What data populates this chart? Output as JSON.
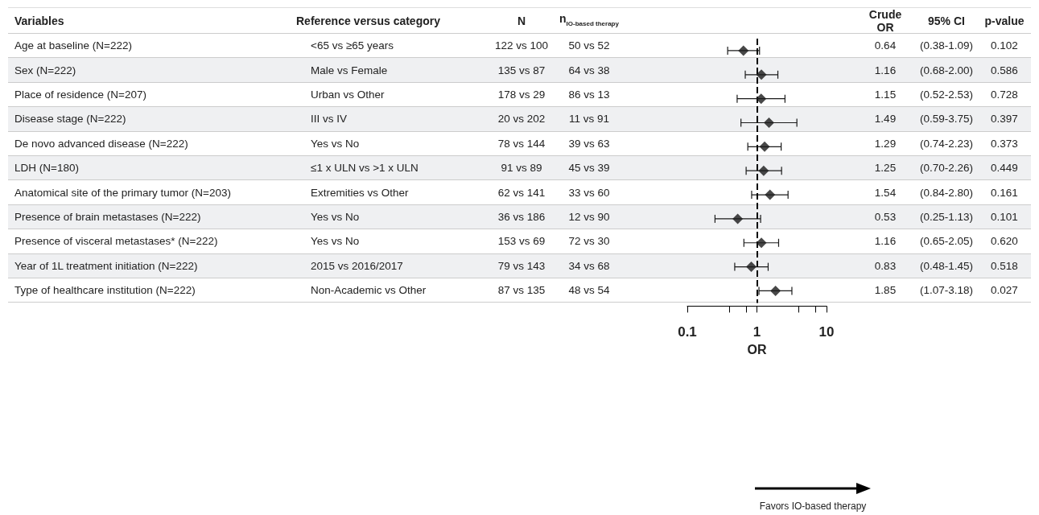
{
  "chart_data": [
    {
      "type": "other",
      "categories": [
        "Variables",
        "Reference versus category",
        "N",
        "n$_{IO-based therapy}$"
      ],
      "cell_labels": [
        [
          "Age at baseline (N=222)",
          "<65 vs ≥65 years",
          "122 vs 100",
          "50 vs 52"
        ],
        [
          "Sex (N=222)",
          "Male vs Female",
          "135 vs 87",
          "64 vs 38"
        ],
        [
          "Place of residence (N=207)",
          "Urban vs Other",
          "178 vs 29",
          "86 vs 13"
        ],
        [
          "Disease stage (N=222)",
          "III vs IV",
          "20 vs 202",
          "11 vs 91"
        ],
        [
          "De novo advanced disease (N=222)",
          "Yes vs No",
          "78 vs 144",
          "39 vs 63"
        ],
        [
          "LDH (N=180)",
          "≤1 x ULN vs >1 x ULN",
          "91 vs 89",
          "45 vs 39"
        ],
        [
          "Anatomical site of the primary tumor (N=203)",
          "Extremities vs Other",
          "62 vs 141",
          "33 vs 60"
        ],
        [
          "Presence of brain metastases (N=222)",
          "Yes vs No",
          "36 vs 186",
          "12 vs 90"
        ],
        [
          "Presence of visceral metastases* (N=222)",
          "Yes vs No",
          "153 vs 69",
          "72 vs 30"
        ],
        [
          "Year of 1L treatment initiation (N=222)",
          "2015 vs 2016/2017",
          "79 vs 143",
          "34 vs 68"
        ],
        [
          "Type of healthcare institution (N=222)",
          "Non-Academic vs Other",
          "87 vs 135",
          "48 vs 54"
        ]
      ]
    },
    {
      "type": "scatter",
      "orientation": "horizontal",
      "categories": [
        null,
        null,
        null,
        null,
        null,
        null,
        null,
        null,
        null,
        null,
        null
      ],
      "values": [
        0.64,
        1.16,
        1.15,
        1.49,
        1.29,
        1.25,
        1.54,
        0.53,
        1.16,
        0.83,
        1.85
      ],
      "errors": [
        [
          0.38,
          1.09
        ],
        [
          0.68,
          2.0
        ],
        [
          0.52,
          2.53
        ],
        [
          0.59,
          3.75
        ],
        [
          0.74,
          2.23
        ],
        [
          0.7,
          2.26
        ],
        [
          0.84,
          2.8
        ],
        [
          0.25,
          1.13
        ],
        [
          0.65,
          2.05
        ],
        [
          0.48,
          1.45
        ],
        [
          1.07,
          3.18
        ]
      ],
      "color": "#1a1a1a",
      "marker": "diamond",
      "log": "x",
      "xlim": [
        0.1,
        10
      ],
      "xticks": [
        0.1,
        {
          "value": 0.4,
          "label": null
        },
        {
          "value": 0.7,
          "label": null
        },
        1,
        {
          "value": 4,
          "label": null
        },
        {
          "value": 7,
          "label": null
        },
        10
      ],
      "xlabel": "OR",
      "tick_labels": "x",
      "grid": false,
      "ref_lines": [
        {
          "axis": "x",
          "value": 1,
          "color": "#000000",
          "line_style": "dashed"
        }
      ],
      "annotations": [
        "Favors IO-based therapy"
      ]
    },
    {
      "type": "other",
      "categories": [
        "Crude OR",
        "95% CI",
        "p-value"
      ],
      "cell_labels": [
        [
          "0.64",
          "(0.38-1.09)",
          "0.102"
        ],
        [
          "1.16",
          "(0.68-2.00)",
          "0.586"
        ],
        [
          "1.15",
          "(0.52-2.53)",
          "0.728"
        ],
        [
          "1.49",
          "(0.59-3.75)",
          "0.397"
        ],
        [
          "1.29",
          "(0.74-2.23)",
          "0.373"
        ],
        [
          "1.25",
          "(0.70-2.26)",
          "0.449"
        ],
        [
          "1.54",
          "(0.84-2.80)",
          "0.161"
        ],
        [
          "0.53",
          "(0.25-1.13)",
          "0.101"
        ],
        [
          "1.16",
          "(0.65-2.05)",
          "0.620"
        ],
        [
          "0.83",
          "(0.48-1.45)",
          "0.518"
        ],
        [
          "1.85",
          "(1.07-3.18)",
          "0.027"
        ]
      ]
    }
  ]
}
